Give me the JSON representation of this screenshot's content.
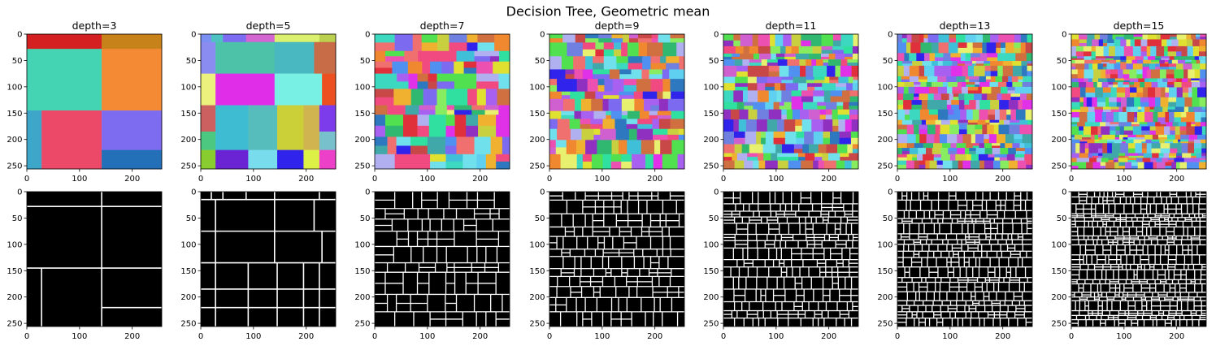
{
  "figure": {
    "title": "Decision Tree, Geometric mean"
  },
  "chart_data": {
    "type": "heatmap",
    "title": "Decision Tree, Geometric mean",
    "image_size": [
      256,
      256
    ],
    "rows": [
      "segmentation",
      "boundaries"
    ],
    "row_colormaps": [
      "random-color",
      "binary"
    ],
    "boundary_color": "#ffffff",
    "background_color": "#000000",
    "xlim": [
      0,
      256
    ],
    "ylim": [
      256,
      0
    ],
    "xticks": [
      0,
      100,
      200
    ],
    "yticks": [
      0,
      50,
      100,
      150,
      200,
      250
    ],
    "panels": [
      {
        "title": "depth=3",
        "depth": 3,
        "segments": [
          {
            "x": [
              0,
              142
            ],
            "y": [
              0,
              28
            ],
            "color": "#d42020"
          },
          {
            "x": [
              142,
              256
            ],
            "y": [
              0,
              28
            ],
            "color": "#c8821a"
          },
          {
            "x": [
              0,
              142
            ],
            "y": [
              28,
              145
            ],
            "color": "#44d4b4"
          },
          {
            "x": [
              142,
              256
            ],
            "y": [
              28,
              145
            ],
            "color": "#f48a34"
          },
          {
            "x": [
              0,
              28
            ],
            "y": [
              145,
              256
            ],
            "color": "#3ea6c8"
          },
          {
            "x": [
              28,
              142
            ],
            "y": [
              145,
              256
            ],
            "color": "#ec4868"
          },
          {
            "x": [
              142,
              256
            ],
            "y": [
              145,
              220
            ],
            "color": "#7e6cf0"
          },
          {
            "x": [
              142,
              256
            ],
            "y": [
              220,
              256
            ],
            "color": "#2470b8"
          }
        ]
      },
      {
        "title": "depth=5",
        "depth": 5,
        "segments": [
          {
            "x": [
              0,
              20
            ],
            "y": [
              0,
              15
            ],
            "color": "#7a90f2"
          },
          {
            "x": [
              20,
              42
            ],
            "y": [
              0,
              15
            ],
            "color": "#4ec2c2"
          },
          {
            "x": [
              42,
              86
            ],
            "y": [
              0,
              15
            ],
            "color": "#7c6cf2"
          },
          {
            "x": [
              86,
              140
            ],
            "y": [
              0,
              15
            ],
            "color": "#d466d2"
          },
          {
            "x": [
              140,
              225
            ],
            "y": [
              0,
              15
            ],
            "color": "#dcf070"
          },
          {
            "x": [
              225,
              256
            ],
            "y": [
              0,
              15
            ],
            "color": "#bcd050"
          },
          {
            "x": [
              0,
              28
            ],
            "y": [
              15,
              75
            ],
            "color": "#8a8cf0"
          },
          {
            "x": [
              28,
              140
            ],
            "y": [
              15,
              75
            ],
            "color": "#4ec2a8"
          },
          {
            "x": [
              140,
              215
            ],
            "y": [
              15,
              75
            ],
            "color": "#4ab8c0"
          },
          {
            "x": [
              215,
              256
            ],
            "y": [
              15,
              75
            ],
            "color": "#c86c48"
          },
          {
            "x": [
              0,
              28
            ],
            "y": [
              75,
              135
            ],
            "color": "#ecf07c"
          },
          {
            "x": [
              28,
              140
            ],
            "y": [
              75,
              135
            ],
            "color": "#e02ee8"
          },
          {
            "x": [
              140,
              230
            ],
            "y": [
              75,
              135
            ],
            "color": "#78f0e4"
          },
          {
            "x": [
              230,
              256
            ],
            "y": [
              75,
              135
            ],
            "color": "#ec5020"
          },
          {
            "x": [
              0,
              28
            ],
            "y": [
              135,
              185
            ],
            "color": "#cc6060"
          },
          {
            "x": [
              28,
              90
            ],
            "y": [
              135,
              185
            ],
            "color": "#3ebcd2"
          },
          {
            "x": [
              90,
              145
            ],
            "y": [
              135,
              185
            ],
            "color": "#56bcbc"
          },
          {
            "x": [
              145,
              195
            ],
            "y": [
              135,
              185
            ],
            "color": "#ccd038"
          },
          {
            "x": [
              195,
              225
            ],
            "y": [
              135,
              185
            ],
            "color": "#d0b450"
          },
          {
            "x": [
              225,
              256
            ],
            "y": [
              135,
              185
            ],
            "color": "#7c3cec"
          },
          {
            "x": [
              0,
              28
            ],
            "y": [
              185,
              220
            ],
            "color": "#4cc880"
          },
          {
            "x": [
              28,
              90
            ],
            "y": [
              185,
              220
            ],
            "color": "#3ebcd2"
          },
          {
            "x": [
              90,
              145
            ],
            "y": [
              185,
              220
            ],
            "color": "#56bcbc"
          },
          {
            "x": [
              145,
              195
            ],
            "y": [
              185,
              220
            ],
            "color": "#ccd038"
          },
          {
            "x": [
              195,
              225
            ],
            "y": [
              185,
              220
            ],
            "color": "#d0b450"
          },
          {
            "x": [
              225,
              256
            ],
            "y": [
              185,
              220
            ],
            "color": "#78c0cc"
          },
          {
            "x": [
              0,
              28
            ],
            "y": [
              220,
              256
            ],
            "color": "#88cc30"
          },
          {
            "x": [
              28,
              90
            ],
            "y": [
              220,
              256
            ],
            "color": "#6a24d4"
          },
          {
            "x": [
              90,
              145
            ],
            "y": [
              220,
              256
            ],
            "color": "#78dcec"
          },
          {
            "x": [
              145,
              195
            ],
            "y": [
              220,
              256
            ],
            "color": "#3024ec"
          },
          {
            "x": [
              195,
              225
            ],
            "y": [
              220,
              256
            ],
            "color": "#dcf046"
          },
          {
            "x": [
              225,
              256
            ],
            "y": [
              220,
              256
            ],
            "color": "#ec40c8"
          }
        ]
      },
      {
        "title": "depth=7",
        "depth": 7,
        "grid": 9,
        "seed": 7
      },
      {
        "title": "depth=9",
        "depth": 9,
        "grid": 12,
        "seed": 9
      },
      {
        "title": "depth=11",
        "depth": 11,
        "grid": 15,
        "seed": 11
      },
      {
        "title": "depth=13",
        "depth": 13,
        "grid": 18,
        "seed": 13
      },
      {
        "title": "depth=15",
        "depth": 15,
        "grid": 21,
        "seed": 15
      }
    ]
  }
}
